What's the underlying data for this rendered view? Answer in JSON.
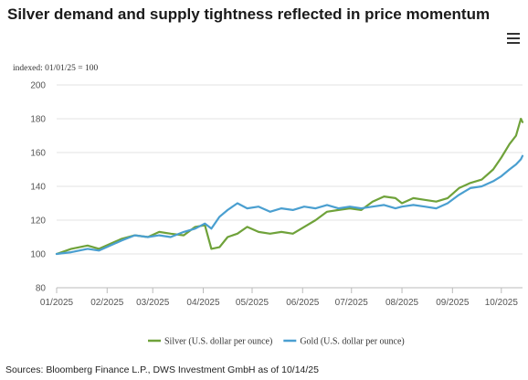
{
  "header": {
    "title": "Silver demand and supply tightness reflected in price momentum",
    "menu_icon": "hamburger-menu-icon"
  },
  "footer": {
    "source": "Sources: Bloomberg Finance L.P., DWS Investment GmbH as of 10/14/25"
  },
  "chart_data": {
    "type": "line",
    "subtitle": "indexed: 01/01/25 = 100",
    "ylim": [
      80,
      200
    ],
    "yticks": [
      80,
      100,
      120,
      140,
      160,
      180,
      200
    ],
    "x_range": [
      "2025-01-01",
      "2025-10-14"
    ],
    "x_ticks": [
      "01/2025",
      "02/2025",
      "03/2025",
      "04/2025",
      "05/2025",
      "06/2025",
      "07/2025",
      "08/2025",
      "09/2025",
      "10/2025"
    ],
    "grid": "horizontal",
    "legend": "bottom-center",
    "series": [
      {
        "name": "Silver (U.S. dollar per ounce)",
        "color": "#6fa23a",
        "points": [
          [
            "2025-01-01",
            100
          ],
          [
            "2025-01-10",
            103
          ],
          [
            "2025-01-20",
            105
          ],
          [
            "2025-01-27",
            103
          ],
          [
            "2025-02-03",
            106
          ],
          [
            "2025-02-10",
            109
          ],
          [
            "2025-02-18",
            111
          ],
          [
            "2025-02-26",
            110
          ],
          [
            "2025-03-05",
            113
          ],
          [
            "2025-03-12",
            112
          ],
          [
            "2025-03-20",
            111
          ],
          [
            "2025-03-27",
            116
          ],
          [
            "2025-04-02",
            117
          ],
          [
            "2025-04-06",
            103
          ],
          [
            "2025-04-11",
            104
          ],
          [
            "2025-04-16",
            110
          ],
          [
            "2025-04-22",
            112
          ],
          [
            "2025-04-28",
            116
          ],
          [
            "2025-05-05",
            113
          ],
          [
            "2025-05-12",
            112
          ],
          [
            "2025-05-19",
            113
          ],
          [
            "2025-05-26",
            112
          ],
          [
            "2025-06-02",
            116
          ],
          [
            "2025-06-09",
            120
          ],
          [
            "2025-06-16",
            125
          ],
          [
            "2025-06-23",
            126
          ],
          [
            "2025-06-30",
            127
          ],
          [
            "2025-07-07",
            126
          ],
          [
            "2025-07-14",
            131
          ],
          [
            "2025-07-21",
            134
          ],
          [
            "2025-07-28",
            133
          ],
          [
            "2025-08-01",
            130
          ],
          [
            "2025-08-08",
            133
          ],
          [
            "2025-08-15",
            132
          ],
          [
            "2025-08-22",
            131
          ],
          [
            "2025-08-29",
            133
          ],
          [
            "2025-09-05",
            139
          ],
          [
            "2025-09-12",
            142
          ],
          [
            "2025-09-19",
            144
          ],
          [
            "2025-09-26",
            150
          ],
          [
            "2025-10-01",
            157
          ],
          [
            "2025-10-06",
            165
          ],
          [
            "2025-10-10",
            170
          ],
          [
            "2025-10-13",
            180
          ],
          [
            "2025-10-14",
            178
          ]
        ]
      },
      {
        "name": "Gold (U.S. dollar per ounce)",
        "color": "#4a9fd0",
        "points": [
          [
            "2025-01-01",
            100
          ],
          [
            "2025-01-10",
            101
          ],
          [
            "2025-01-20",
            103
          ],
          [
            "2025-01-27",
            102
          ],
          [
            "2025-02-03",
            105
          ],
          [
            "2025-02-10",
            108
          ],
          [
            "2025-02-18",
            111
          ],
          [
            "2025-02-26",
            110
          ],
          [
            "2025-03-05",
            111
          ],
          [
            "2025-03-12",
            110
          ],
          [
            "2025-03-20",
            113
          ],
          [
            "2025-03-27",
            115
          ],
          [
            "2025-04-02",
            118
          ],
          [
            "2025-04-06",
            115
          ],
          [
            "2025-04-11",
            122
          ],
          [
            "2025-04-16",
            126
          ],
          [
            "2025-04-22",
            130
          ],
          [
            "2025-04-28",
            127
          ],
          [
            "2025-05-05",
            128
          ],
          [
            "2025-05-12",
            125
          ],
          [
            "2025-05-19",
            127
          ],
          [
            "2025-05-26",
            126
          ],
          [
            "2025-06-02",
            128
          ],
          [
            "2025-06-09",
            127
          ],
          [
            "2025-06-16",
            129
          ],
          [
            "2025-06-23",
            127
          ],
          [
            "2025-06-30",
            128
          ],
          [
            "2025-07-07",
            127
          ],
          [
            "2025-07-14",
            128
          ],
          [
            "2025-07-21",
            129
          ],
          [
            "2025-07-28",
            127
          ],
          [
            "2025-08-01",
            128
          ],
          [
            "2025-08-08",
            129
          ],
          [
            "2025-08-15",
            128
          ],
          [
            "2025-08-22",
            127
          ],
          [
            "2025-08-29",
            130
          ],
          [
            "2025-09-05",
            135
          ],
          [
            "2025-09-12",
            139
          ],
          [
            "2025-09-19",
            140
          ],
          [
            "2025-09-26",
            143
          ],
          [
            "2025-10-01",
            146
          ],
          [
            "2025-10-06",
            150
          ],
          [
            "2025-10-10",
            153
          ],
          [
            "2025-10-13",
            156
          ],
          [
            "2025-10-14",
            158
          ]
        ]
      }
    ]
  }
}
